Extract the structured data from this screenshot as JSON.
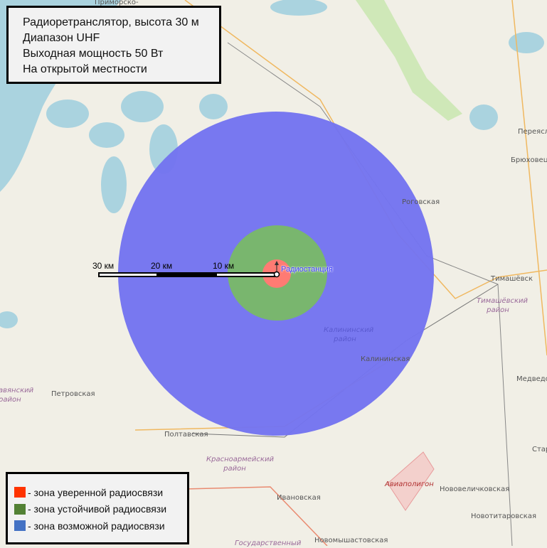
{
  "info_box": {
    "lines": [
      "Радиоретранслятор, высота 30 м",
      "Диапазон UHF",
      "Выходная мощность 50 Вт",
      "На открытой местности"
    ]
  },
  "legend": {
    "items": [
      {
        "label": "- зона уверенной радиосвязи",
        "color": "#ff3300"
      },
      {
        "label": "- зона устойчивой радиосвязи",
        "color": "#538135"
      },
      {
        "label": "- зона возможной радиосвязи",
        "color": "#4472c4"
      }
    ]
  },
  "scale_bar": {
    "labels": [
      "30 км",
      "20 км",
      "10 км"
    ]
  },
  "station": {
    "label": "Радиостанция",
    "icon": "antenna-marker-icon"
  },
  "coverage_colors": {
    "confident": "#ff7b73",
    "stable": "#79b66e",
    "possible": "#7474f0"
  },
  "map_labels": {
    "settlements": [
      "Приморско-",
      "Переясло",
      "Брюховецка",
      "Роговская",
      "Тимашёвск",
      "Калининская",
      "Медведов",
      "Петровская",
      "Полтавская",
      "Ивановская",
      "Нововеличковская",
      "Стар",
      "Новотитаровская",
      "Новомышастовская",
      "Авиаполигон"
    ],
    "districts": [
      "Тимашёвский район",
      "Калининский район",
      "Красноармейский район",
      "авянский район",
      "Государственный"
    ]
  }
}
